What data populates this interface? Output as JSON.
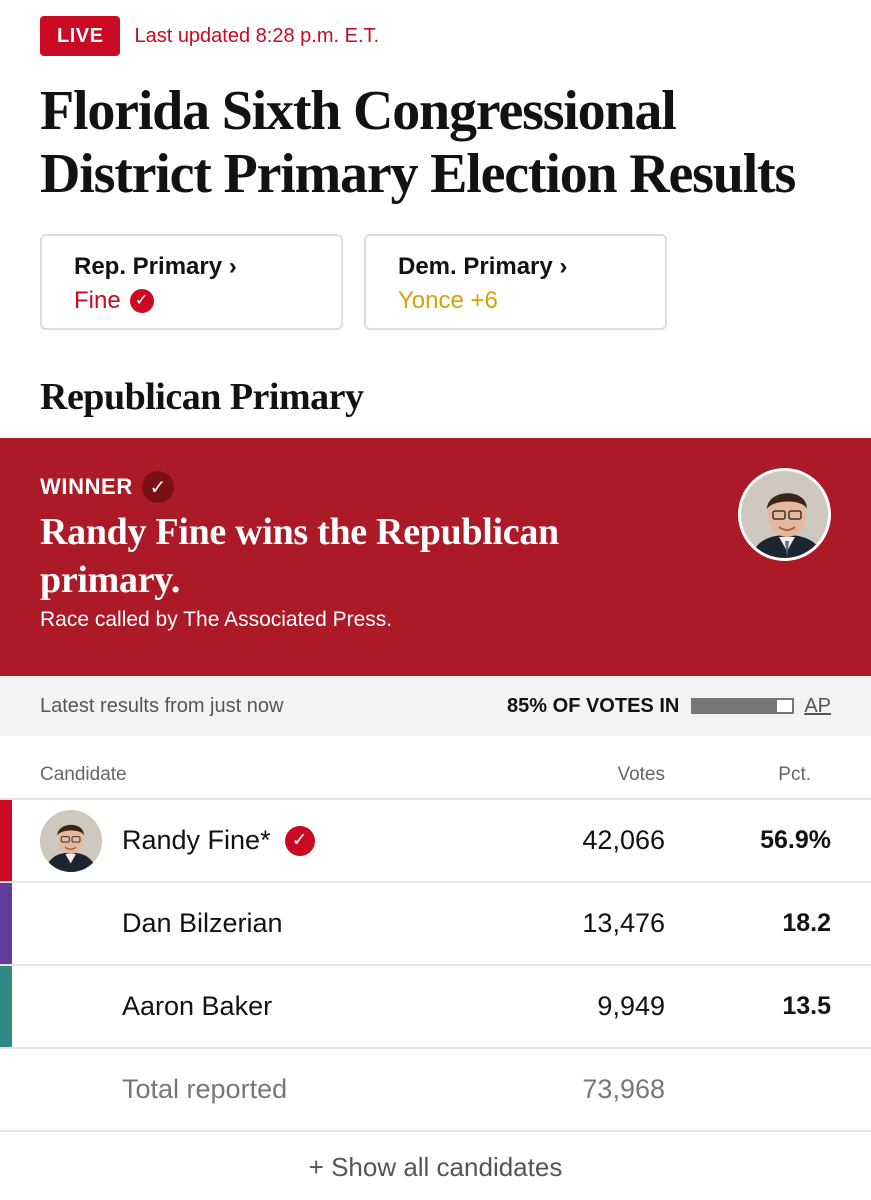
{
  "header": {
    "live_label": "LIVE",
    "updated": "Last updated 8:28 p.m. E.T.",
    "title": "Florida Sixth Congressional District Primary Election Results"
  },
  "cards": [
    {
      "label": "Rep. Primary ›",
      "status": "Fine",
      "has_check": true
    },
    {
      "label": "Dem. Primary ›",
      "status": "Yonce +6",
      "has_check": false
    }
  ],
  "section_title": "Republican Primary",
  "banner": {
    "winner_label": "WINNER",
    "headline": "Randy Fine wins the Republican primary.",
    "subtext": "Race called by The Associated Press."
  },
  "status": {
    "latest": "Latest results from just now",
    "votes_in": "85% OF VOTES IN",
    "votes_in_fraction": 0.85,
    "source_link": "AP"
  },
  "table": {
    "headers": {
      "candidate": "Candidate",
      "votes": "Votes",
      "pct": "Pct."
    },
    "rows": [
      {
        "name": "Randy Fine*",
        "votes": "42,066",
        "pct": "56.9%",
        "color": "#c90a22",
        "winner": true
      },
      {
        "name": "Dan Bilzerian",
        "votes": "13,476",
        "pct": "18.2",
        "color": "#5e3d9c",
        "winner": false
      },
      {
        "name": "Aaron Baker",
        "votes": "9,949",
        "pct": "13.5",
        "color": "#2e8a82",
        "winner": false
      }
    ],
    "total": {
      "label": "Total reported",
      "votes": "73,968"
    }
  },
  "show_all": "+ Show all candidates",
  "colors": {
    "live_red": "#c90a22",
    "banner_red": "#ab1a26",
    "dem_gold": "#d4a20a"
  }
}
